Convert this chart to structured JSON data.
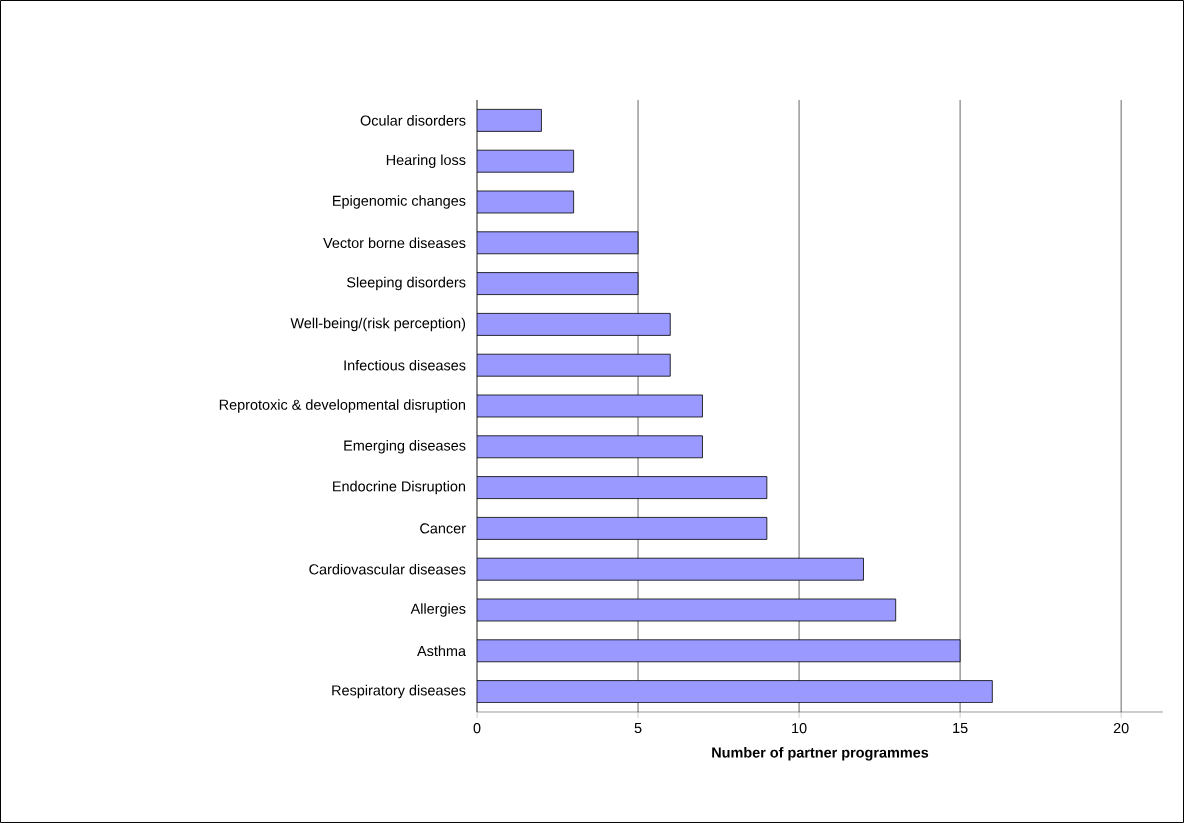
{
  "chart_data": {
    "type": "bar",
    "orientation": "horizontal",
    "categories": [
      "Ocular disorders",
      "Hearing loss",
      "Epigenomic changes",
      "Vector borne diseases",
      "Sleeping disorders",
      "Well-being/(risk perception)",
      "Infectious diseases",
      "Reprotoxic & developmental disruption",
      "Emerging diseases",
      "Endocrine Disruption",
      "Cancer",
      "Cardiovascular diseases",
      "Allergies",
      "Asthma",
      "Respiratory diseases"
    ],
    "values": [
      2,
      3,
      3,
      5,
      5,
      6,
      6,
      7,
      7,
      9,
      9,
      12,
      13,
      15,
      16
    ],
    "color": "#9999ff",
    "xlabel": "Number of partner programmes",
    "xlim": [
      0,
      21.3
    ],
    "xticks": [
      0,
      5,
      10,
      15,
      20
    ],
    "grid": "x"
  }
}
